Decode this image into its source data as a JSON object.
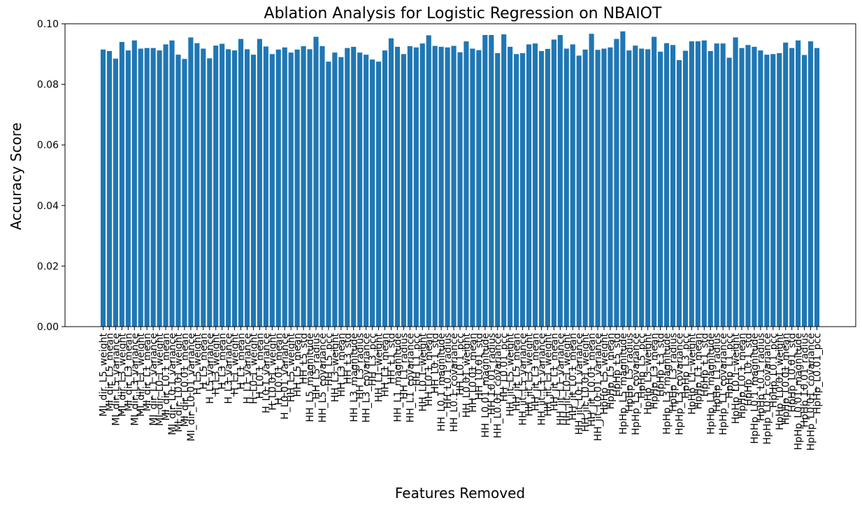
{
  "chart_data": {
    "type": "bar",
    "title": "Ablation Analysis for Logistic Regression on NBAIOT",
    "xlabel": "Features Removed",
    "ylabel": "Accuracy Score",
    "ylim": [
      0,
      0.1
    ],
    "yticks": [
      "0.00",
      "0.02",
      "0.04",
      "0.06",
      "0.08",
      "0.10"
    ],
    "bar_color": "#1f77b4",
    "grid": false,
    "categories": [
      "MI_dir_L5_weight",
      "MI_dir_L5_mean",
      "MI_dir_L5_variance",
      "MI_dir_L3_weight",
      "MI_dir_L3_mean",
      "MI_dir_L3_variance",
      "MI_dir_L1_weight",
      "MI_dir_L1_mean",
      "MI_dir_L1_variance",
      "MI_dir_L0.1_weight",
      "MI_dir_L0.1_mean",
      "MI_dir_L0.1_variance",
      "MI_dir_L0.01_weight",
      "MI_dir_L0.01_mean",
      "MI_dir_L0.01_variance",
      "H_L5_weight",
      "H_L5_mean",
      "H_L5_variance",
      "H_L3_weight",
      "H_L3_mean",
      "H_L3_variance",
      "H_L1_weight",
      "H_L1_mean",
      "H_L1_variance",
      "H_L0.1_weight",
      "H_L0.1_mean",
      "H_L0.1_variance",
      "H_L0.01_weight",
      "H_L0.01_mean",
      "H_L0.01_variance",
      "HH_L5_weight",
      "HH_L5_mean",
      "HH_L5_std",
      "HH_L5_magnitude",
      "HH_L5_radius",
      "HH_L5_covariance",
      "HH_L5_pcc",
      "HH_L3_weight",
      "HH_L3_mean",
      "HH_L3_std",
      "HH_L3_magnitude",
      "HH_L3_radius",
      "HH_L3_covariance",
      "HH_L3_pcc",
      "HH_L1_weight",
      "HH_L1_mean",
      "HH_L1_std",
      "HH_L1_magnitude",
      "HH_L1_radius",
      "HH_L1_covariance",
      "HH_L1_pcc",
      "HH_L0.1_weight",
      "HH_L0.1_mean",
      "HH_L0.1_std",
      "HH_L0.1_magnitude",
      "HH_L0.1_radius",
      "HH_L0.1_covariance",
      "HH_L0.1_pcc",
      "HH_L0.01_weight",
      "HH_L0.01_mean",
      "HH_L0.01_std",
      "HH_L0.01_magnitude",
      "HH_L0.01_radius",
      "HH_L0.01_covariance",
      "HH_L0.01_pcc",
      "HH_jit_L5_weight",
      "HH_jit_L5_mean",
      "HH_jit_L5_variance",
      "HH_jit_L3_weight",
      "HH_jit_L3_mean",
      "HH_jit_L3_variance",
      "HH_jit_L1_weight",
      "HH_jit_L1_mean",
      "HH_jit_L1_variance",
      "HH_jit_L0.1_weight",
      "HH_jit_L0.1_mean",
      "HH_jit_L0.1_variance",
      "HH_jit_L0.01_weight",
      "HH_jit_L0.01_mean",
      "HH_jit_L0.01_variance",
      "HpHp_L5_weight",
      "HpHp_L5_mean",
      "HpHp_L5_std",
      "HpHp_L5_magnitude",
      "HpHp_L5_radius",
      "HpHp_L5_covariance",
      "HpHp_L5_pcc",
      "HpHp_L3_weight",
      "HpHp_L3_mean",
      "HpHp_L3_std",
      "HpHp_L3_magnitude",
      "HpHp_L3_radius",
      "HpHp_L3_covariance",
      "HpHp_L3_pcc",
      "HpHp_L1_weight",
      "HpHp_L1_mean",
      "HpHp_L1_std",
      "HpHp_L1_magnitude",
      "HpHp_L1_radius",
      "HpHp_L1_covariance",
      "HpHp_L1_pcc",
      "HpHp_L0.1_weight",
      "HpHp_L0.1_mean",
      "HpHp_L0.1_std",
      "HpHp_L0.1_magnitude",
      "HpHp_L0.1_radius",
      "HpHp_L0.1_covariance",
      "HpHp_L0.1_pcc",
      "HpHp_L0.01_weight",
      "HpHp_L0.01_mean",
      "HpHp_L0.01_std",
      "HpHp_L0.01_magnitude",
      "HpHp_L0.01_radius",
      "HpHp_L0.01_covariance",
      "HpHp_L0.01_pcc"
    ],
    "values": [
      0.0915,
      0.091,
      0.0885,
      0.094,
      0.0912,
      0.0945,
      0.0918,
      0.092,
      0.092,
      0.0912,
      0.0932,
      0.0945,
      0.0898,
      0.0884,
      0.0955,
      0.0936,
      0.0918,
      0.0886,
      0.0928,
      0.0934,
      0.0916,
      0.0912,
      0.095,
      0.0916,
      0.0898,
      0.095,
      0.0925,
      0.09,
      0.0915,
      0.0922,
      0.0905,
      0.0915,
      0.0926,
      0.0916,
      0.0957,
      0.0926,
      0.0875,
      0.0905,
      0.089,
      0.092,
      0.0924,
      0.0905,
      0.0898,
      0.0882,
      0.0875,
      0.0912,
      0.0952,
      0.0924,
      0.09,
      0.0926,
      0.0922,
      0.0935,
      0.0962,
      0.0927,
      0.0924,
      0.0922,
      0.0927,
      0.0906,
      0.0942,
      0.0918,
      0.0913,
      0.0963,
      0.0963,
      0.0903,
      0.0965,
      0.0924,
      0.09,
      0.0903,
      0.0932,
      0.0935,
      0.091,
      0.0917,
      0.0948,
      0.0963,
      0.0918,
      0.0932,
      0.0895,
      0.0915,
      0.0967,
      0.0914,
      0.0918,
      0.0922,
      0.095,
      0.0975,
      0.0912,
      0.0928,
      0.0918,
      0.0916,
      0.0957,
      0.0908,
      0.0936,
      0.093,
      0.088,
      0.0911,
      0.0942,
      0.0942,
      0.0945,
      0.091,
      0.0935,
      0.0935,
      0.0888,
      0.0955,
      0.092,
      0.093,
      0.0924,
      0.0912,
      0.0898,
      0.09,
      0.0903,
      0.0938,
      0.092,
      0.0945,
      0.0897,
      0.0942,
      0.092
    ]
  }
}
